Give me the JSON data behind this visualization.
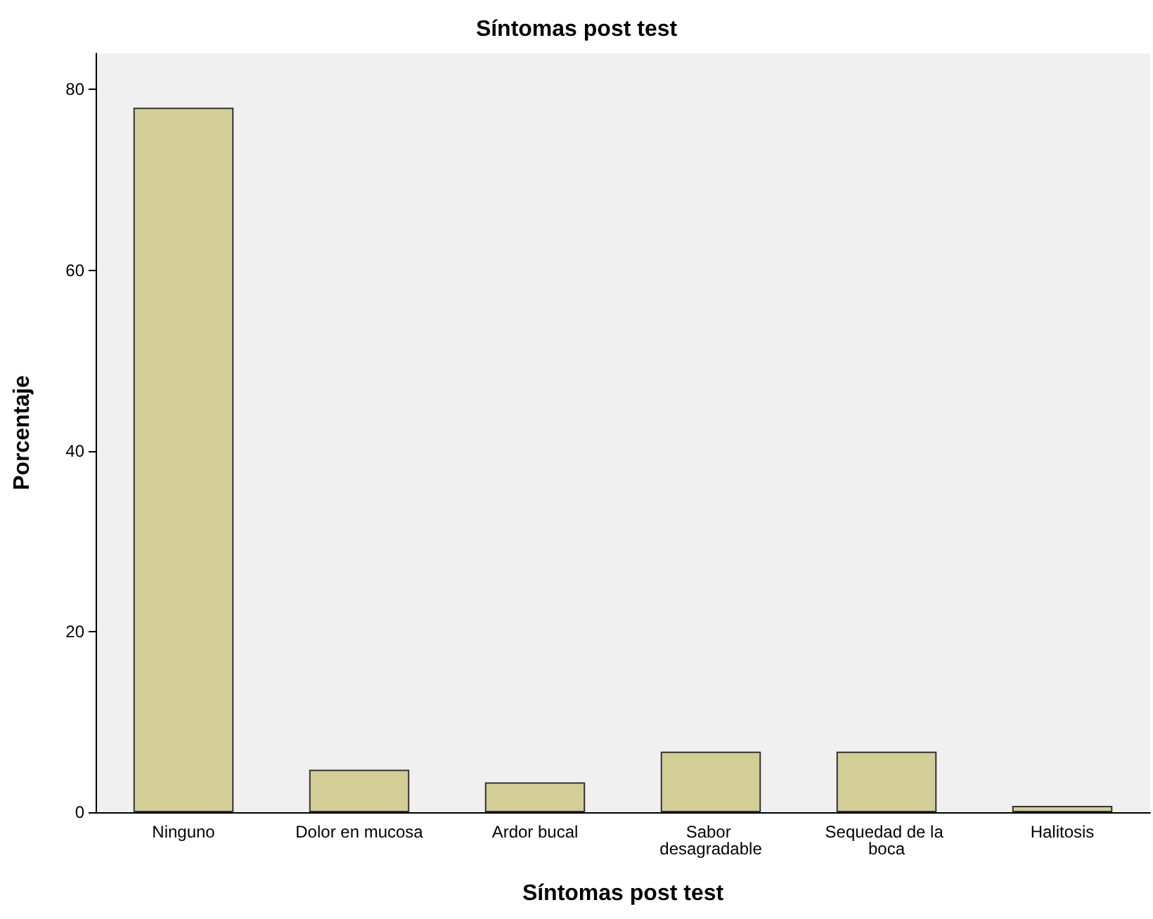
{
  "chart_data": {
    "type": "bar",
    "title": "Síntomas post test",
    "xlabel": "Síntomas post test",
    "ylabel": "Porcentaje",
    "categories": [
      "Ninguno",
      "Dolor en mucosa",
      "Ardor bucal",
      "Sabor desagradable",
      "Sequedad de la boca",
      "Halitosis"
    ],
    "values": [
      78,
      4.7,
      3.3,
      6.7,
      6.7,
      0.7
    ],
    "color": "#d3ce98",
    "ylim": [
      0,
      84
    ],
    "yticks": [
      0,
      20,
      40,
      60,
      80
    ],
    "grid": false
  }
}
